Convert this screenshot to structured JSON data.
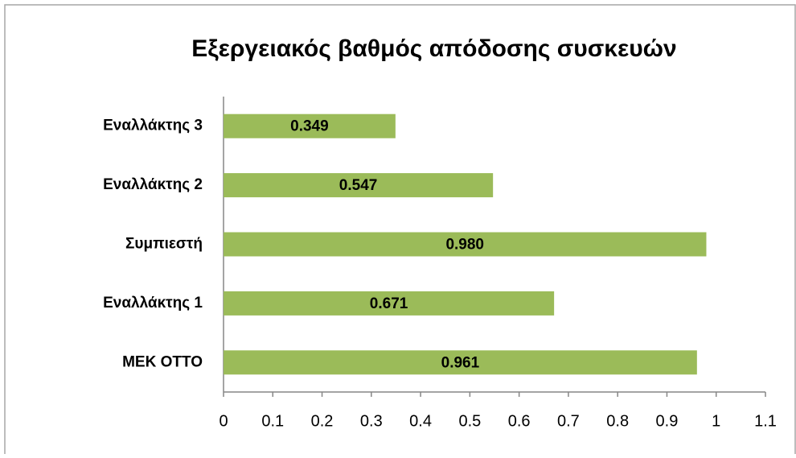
{
  "chart_data": {
    "type": "bar",
    "orientation": "horizontal",
    "title": "Εξεργειακός βαθμός απόδοσης συσκευών",
    "categories": [
      "Εναλλάκτης 3",
      "Εναλλάκτης 2",
      "Συμπιεστή",
      "Εναλλάκτης 1",
      "ΜΕΚ ΟΤΤΟ"
    ],
    "values": [
      0.349,
      0.547,
      0.98,
      0.671,
      0.961
    ],
    "value_labels": [
      "0.349",
      "0.547",
      "0.980",
      "0.671",
      "0.961"
    ],
    "color": "#9bbb59",
    "xlim": [
      0,
      1.1
    ],
    "xticks": [
      0,
      0.1,
      0.2,
      0.3,
      0.4,
      0.5,
      0.6,
      0.7,
      0.8,
      0.9,
      1,
      1.1
    ],
    "grid": false
  }
}
